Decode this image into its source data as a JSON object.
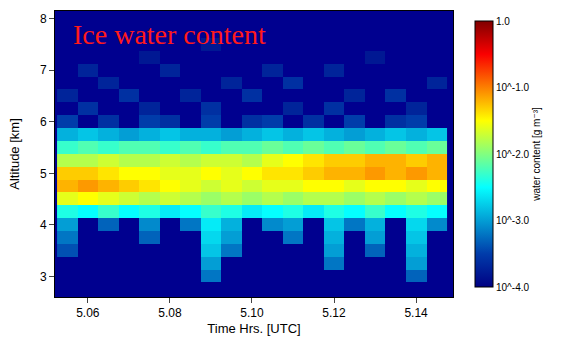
{
  "chart_data": {
    "type": "heatmap",
    "title": "Ice water content",
    "x_label": "Time Hrs. [UTC]",
    "y_label": "Altitude [km]",
    "colorbar_label": "water content [g m⁻³]",
    "x": [
      5.055,
      5.06,
      5.065,
      5.07,
      5.075,
      5.08,
      5.085,
      5.09,
      5.095,
      5.1,
      5.105,
      5.11,
      5.115,
      5.12,
      5.125,
      5.13,
      5.135,
      5.14,
      5.145
    ],
    "y": [
      2.75,
      3.0,
      3.25,
      3.5,
      3.75,
      4.0,
      4.25,
      4.5,
      4.75,
      5.0,
      5.25,
      5.5,
      5.75,
      6.0,
      6.25,
      6.5,
      6.75,
      7.0,
      7.25,
      7.5,
      7.75,
      8.0
    ],
    "z": [
      [
        null,
        null,
        null,
        null,
        null,
        null,
        null,
        null,
        null,
        null,
        null,
        null,
        null,
        null,
        null,
        null,
        null,
        null,
        null
      ],
      [
        null,
        null,
        null,
        null,
        null,
        null,
        null,
        -3.2,
        null,
        null,
        null,
        null,
        null,
        null,
        null,
        null,
        null,
        -3.3,
        null
      ],
      [
        null,
        null,
        null,
        null,
        null,
        null,
        null,
        -3.0,
        null,
        null,
        null,
        null,
        null,
        -3.2,
        null,
        null,
        null,
        -3.0,
        null
      ],
      [
        -3.4,
        null,
        null,
        null,
        null,
        null,
        null,
        -2.8,
        -3.2,
        null,
        null,
        null,
        null,
        -3.0,
        null,
        -3.3,
        null,
        -2.9,
        null
      ],
      [
        -3.2,
        null,
        null,
        null,
        -3.3,
        null,
        null,
        -2.7,
        -3.0,
        null,
        null,
        -3.2,
        null,
        -2.9,
        null,
        -3.0,
        null,
        -2.8,
        null
      ],
      [
        -3.0,
        null,
        -3.3,
        null,
        -3.1,
        null,
        -3.2,
        -2.6,
        -2.9,
        null,
        -3.1,
        -3.0,
        null,
        -2.8,
        -3.2,
        -2.9,
        null,
        -2.7,
        -3.1
      ],
      [
        -2.4,
        -2.5,
        -2.3,
        -2.5,
        -2.4,
        -2.6,
        -2.5,
        -2.3,
        -2.4,
        -2.6,
        -2.5,
        -2.4,
        -2.6,
        -2.4,
        -2.5,
        -2.3,
        -2.5,
        -2.4,
        -2.5
      ],
      [
        -1.6,
        -1.5,
        -1.6,
        -1.7,
        -1.8,
        -1.7,
        -1.8,
        -1.9,
        -1.8,
        -1.9,
        -1.8,
        -1.9,
        -1.8,
        -1.8,
        -1.9,
        -1.8,
        -1.9,
        -1.8,
        -1.9
      ],
      [
        -1.2,
        -1.1,
        -1.2,
        -1.3,
        -1.4,
        -1.5,
        -1.6,
        -1.7,
        -1.6,
        -1.7,
        -1.6,
        -1.6,
        -1.5,
        -1.5,
        -1.6,
        -1.5,
        -1.5,
        -1.6,
        -1.5
      ],
      [
        -1.3,
        -1.3,
        -1.4,
        -1.5,
        -1.5,
        -1.6,
        -1.6,
        -1.5,
        -1.6,
        -1.5,
        -1.4,
        -1.4,
        -1.3,
        -1.2,
        -1.2,
        -1.1,
        -1.2,
        -1.1,
        -1.2
      ],
      [
        -1.8,
        -1.8,
        -1.7,
        -1.8,
        -1.8,
        -1.7,
        -1.8,
        -1.7,
        -1.7,
        -1.8,
        -1.6,
        -1.5,
        -1.4,
        -1.3,
        -1.3,
        -1.2,
        -1.2,
        -1.3,
        -1.2
      ],
      [
        -2.3,
        -2.2,
        -2.3,
        -2.2,
        -2.2,
        -2.3,
        -2.2,
        -2.3,
        -2.2,
        -2.2,
        -2.1,
        -2.2,
        -2.1,
        -2.2,
        -2.1,
        -2.2,
        -2.1,
        -2.2,
        -2.1
      ],
      [
        -2.9,
        -2.8,
        -2.9,
        -3.0,
        -2.9,
        -2.8,
        -2.9,
        -2.9,
        -3.0,
        -2.9,
        -2.8,
        -2.9,
        -2.8,
        -2.9,
        -3.0,
        -2.9,
        -2.8,
        -2.9,
        -2.8
      ],
      [
        -3.5,
        null,
        -3.6,
        null,
        -3.5,
        -3.6,
        null,
        -3.5,
        null,
        -3.6,
        -3.5,
        null,
        -3.6,
        null,
        -3.5,
        null,
        -3.6,
        -3.5,
        null
      ],
      [
        null,
        -3.6,
        null,
        null,
        -3.7,
        null,
        null,
        -3.6,
        null,
        null,
        null,
        -3.7,
        null,
        -3.6,
        null,
        null,
        null,
        -3.7,
        null
      ],
      [
        -3.7,
        null,
        null,
        -3.6,
        null,
        null,
        -3.7,
        null,
        null,
        -3.6,
        null,
        null,
        null,
        null,
        -3.7,
        null,
        -3.6,
        null,
        null
      ],
      [
        null,
        null,
        -3.7,
        null,
        null,
        null,
        null,
        null,
        -3.7,
        null,
        null,
        -3.6,
        null,
        null,
        null,
        null,
        null,
        null,
        -3.7
      ],
      [
        null,
        -3.7,
        null,
        null,
        null,
        -3.7,
        null,
        null,
        null,
        null,
        -3.7,
        null,
        null,
        -3.7,
        null,
        null,
        null,
        null,
        null
      ],
      [
        null,
        null,
        null,
        null,
        -3.8,
        null,
        null,
        null,
        null,
        null,
        null,
        null,
        null,
        null,
        null,
        -3.8,
        null,
        null,
        null
      ],
      [
        null,
        null,
        null,
        null,
        null,
        null,
        null,
        -3.8,
        null,
        null,
        null,
        null,
        null,
        null,
        null,
        null,
        null,
        null,
        null
      ],
      [
        null,
        null,
        null,
        null,
        null,
        null,
        null,
        null,
        null,
        null,
        null,
        null,
        null,
        null,
        null,
        null,
        null,
        null,
        null
      ],
      [
        null,
        null,
        null,
        null,
        null,
        null,
        null,
        null,
        null,
        null,
        null,
        null,
        null,
        null,
        null,
        null,
        null,
        null,
        null
      ]
    ],
    "xlim": [
      5.052,
      5.149
    ],
    "ylim": [
      2.6,
      8.15
    ],
    "xticks": [
      5.06,
      5.08,
      {
        "value": 5.1,
        "label": "5.10"
      },
      5.12,
      5.14
    ],
    "yticks": [
      3,
      4,
      5,
      6,
      7,
      8
    ],
    "zlim": [
      -4,
      0
    ],
    "zticks": [
      {
        "value": -4,
        "label": "10^-4.0"
      },
      {
        "value": -3,
        "label": "10^-3.0"
      },
      {
        "value": -2,
        "label": "10^-2.0"
      },
      {
        "value": -1,
        "label": "10^-1.0"
      },
      {
        "value": 0,
        "label": "1.0"
      }
    ],
    "grid": false
  }
}
